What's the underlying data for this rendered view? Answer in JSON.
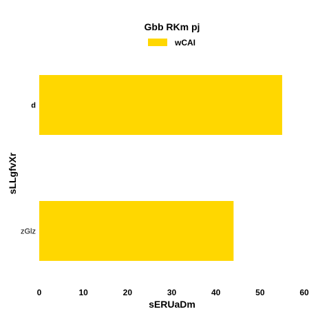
{
  "chart_data": {
    "type": "bar",
    "orientation": "horizontal",
    "title": "Gbb RKm pj",
    "xlabel": "sERUaDm",
    "ylabel": "sLLgfvXr",
    "categories": [
      "d",
      "zGlz"
    ],
    "series": [
      {
        "name": "wCAI",
        "values": [
          55,
          44
        ],
        "color": "#FFD700"
      }
    ],
    "xlim": [
      0,
      60
    ],
    "xticks": [
      "0",
      "10",
      "20",
      "30",
      "40",
      "50",
      "60"
    ],
    "grid": false,
    "legend": "top-center"
  }
}
